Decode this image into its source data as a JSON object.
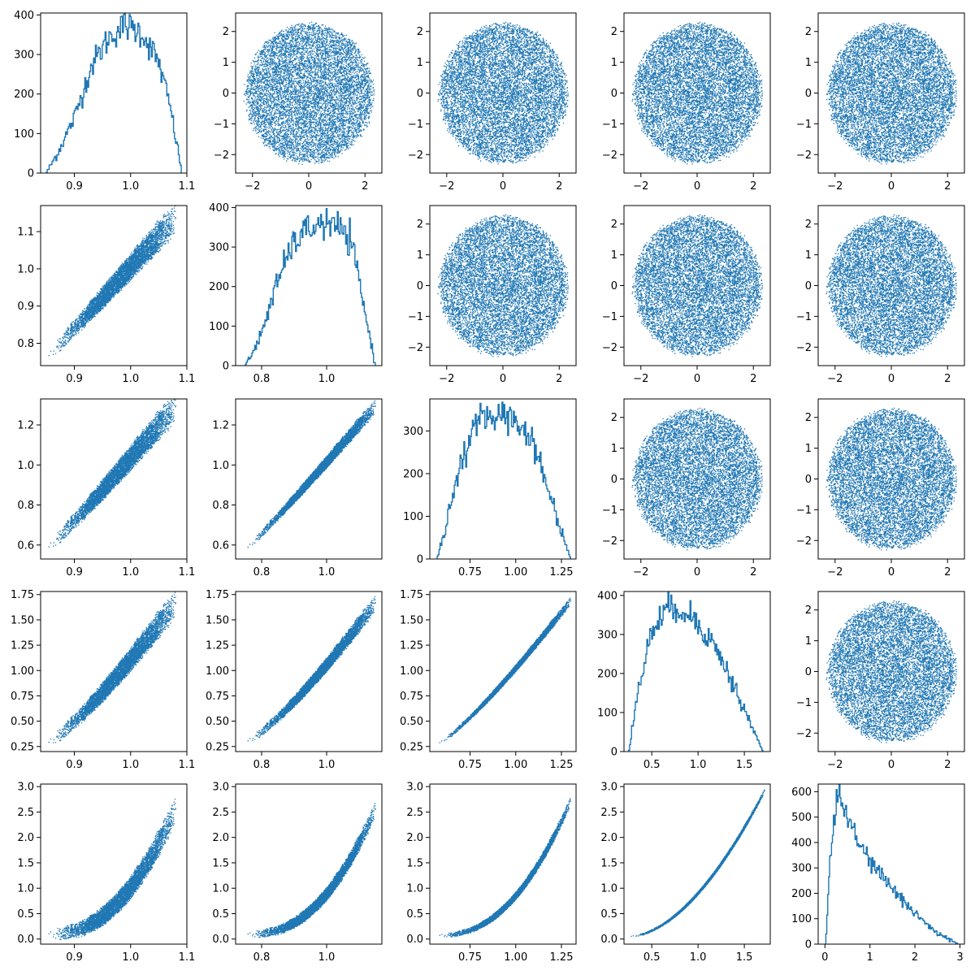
{
  "figure": {
    "rows": 5,
    "cols": 5,
    "color": "#1f77b4",
    "background": "#ffffff"
  },
  "chart_data": [
    {
      "panel": "0-0",
      "type": "histogram",
      "xlim": [
        0.84,
        1.1
      ],
      "ylim": [
        0,
        405
      ],
      "xticks": [
        0.9,
        1.0,
        1.1
      ],
      "yticks": [
        0,
        100,
        200,
        300,
        400
      ],
      "xtick_labels": [
        "0.9",
        "1.0",
        "1.1"
      ],
      "ytick_labels": [
        "0",
        "100",
        "200",
        "300",
        "400"
      ],
      "curve": [
        [
          0.85,
          0
        ],
        [
          0.87,
          50
        ],
        [
          0.9,
          140
        ],
        [
          0.93,
          270
        ],
        [
          0.96,
          340
        ],
        [
          0.99,
          375
        ],
        [
          1.02,
          355
        ],
        [
          1.05,
          280
        ],
        [
          1.07,
          170
        ],
        [
          1.09,
          10
        ]
      ]
    },
    {
      "panel": "0-1",
      "type": "scatter",
      "xlim": [
        -2.6,
        2.6
      ],
      "ylim": [
        -2.6,
        2.6
      ],
      "xticks": [
        -2,
        0,
        2
      ],
      "yticks": [
        -2,
        -1,
        0,
        1,
        2
      ],
      "xtick_labels": [
        "−2",
        "0",
        "2"
      ],
      "ytick_labels": [
        "−2",
        "−1",
        "0",
        "1",
        "2"
      ],
      "shape": "disk",
      "radius": 2.3
    },
    {
      "panel": "0-2",
      "type": "scatter",
      "xlim": [
        -2.6,
        2.6
      ],
      "ylim": [
        -2.6,
        2.6
      ],
      "xticks": [
        -2,
        0,
        2
      ],
      "yticks": [
        -2,
        -1,
        0,
        1,
        2
      ],
      "xtick_labels": [
        "−2",
        "0",
        "2"
      ],
      "ytick_labels": [
        "−2",
        "−1",
        "0",
        "1",
        "2"
      ],
      "shape": "disk",
      "radius": 2.3
    },
    {
      "panel": "0-3",
      "type": "scatter",
      "xlim": [
        -2.6,
        2.6
      ],
      "ylim": [
        -2.6,
        2.6
      ],
      "xticks": [
        -2,
        0,
        2
      ],
      "yticks": [
        -2,
        -1,
        0,
        1,
        2
      ],
      "xtick_labels": [
        "−2",
        "0",
        "2"
      ],
      "ytick_labels": [
        "−2",
        "−1",
        "0",
        "1",
        "2"
      ],
      "shape": "disk",
      "radius": 2.3
    },
    {
      "panel": "0-4",
      "type": "scatter",
      "xlim": [
        -2.6,
        2.6
      ],
      "ylim": [
        -2.6,
        2.6
      ],
      "xticks": [
        -2,
        0,
        2
      ],
      "yticks": [
        -2,
        -1,
        0,
        1,
        2
      ],
      "xtick_labels": [
        "−2",
        "0",
        "2"
      ],
      "ytick_labels": [
        "−2",
        "−1",
        "0",
        "1",
        "2"
      ],
      "shape": "disk",
      "radius": 2.3
    },
    {
      "panel": "1-0",
      "type": "scatter",
      "xlim": [
        0.84,
        1.1
      ],
      "ylim": [
        0.74,
        1.17
      ],
      "xticks": [
        0.9,
        1.0,
        1.1
      ],
      "yticks": [
        0.8,
        0.9,
        1.0,
        1.1
      ],
      "xtick_labels": [
        "0.9",
        "1.0",
        "1.1"
      ],
      "ytick_labels": [
        "0.8",
        "0.9",
        "1.0",
        "1.1"
      ],
      "shape": "band",
      "band": {
        "x": [
          0.85,
          1.08
        ],
        "y0": 0.76,
        "y1": 1.14,
        "power": 1,
        "halfwidth": 0.04
      }
    },
    {
      "panel": "1-1",
      "type": "histogram",
      "xlim": [
        0.72,
        1.17
      ],
      "ylim": [
        0,
        405
      ],
      "xticks": [
        0.8,
        1.0
      ],
      "yticks": [
        0,
        100,
        200,
        300,
        400
      ],
      "xtick_labels": [
        "0.8",
        "1.0"
      ],
      "ytick_labels": [
        "0",
        "100",
        "200",
        "300",
        "400"
      ],
      "curve": [
        [
          0.75,
          0
        ],
        [
          0.79,
          60
        ],
        [
          0.84,
          190
        ],
        [
          0.89,
          300
        ],
        [
          0.94,
          345
        ],
        [
          0.99,
          360
        ],
        [
          1.04,
          350
        ],
        [
          1.08,
          300
        ],
        [
          1.11,
          170
        ],
        [
          1.15,
          0
        ]
      ]
    },
    {
      "panel": "1-2",
      "type": "scatter",
      "xlim": [
        -2.6,
        2.6
      ],
      "ylim": [
        -2.6,
        2.6
      ],
      "xticks": [
        -2,
        0,
        2
      ],
      "yticks": [
        -2,
        -1,
        0,
        1,
        2
      ],
      "xtick_labels": [
        "−2",
        "0",
        "2"
      ],
      "ytick_labels": [
        "−2",
        "−1",
        "0",
        "1",
        "2"
      ],
      "shape": "disk",
      "radius": 2.3
    },
    {
      "panel": "1-3",
      "type": "scatter",
      "xlim": [
        -2.6,
        2.6
      ],
      "ylim": [
        -2.6,
        2.6
      ],
      "xticks": [
        -2,
        0,
        2
      ],
      "yticks": [
        -2,
        -1,
        0,
        1,
        2
      ],
      "xtick_labels": [
        "−2",
        "0",
        "2"
      ],
      "ytick_labels": [
        "−2",
        "−1",
        "0",
        "1",
        "2"
      ],
      "shape": "disk",
      "radius": 2.3
    },
    {
      "panel": "1-4",
      "type": "scatter",
      "xlim": [
        -2.6,
        2.6
      ],
      "ylim": [
        -2.6,
        2.6
      ],
      "xticks": [
        -2,
        0,
        2
      ],
      "yticks": [
        -2,
        -1,
        0,
        1,
        2
      ],
      "xtick_labels": [
        "−2",
        "0",
        "2"
      ],
      "ytick_labels": [
        "−2",
        "−1",
        "0",
        "1",
        "2"
      ],
      "shape": "disk",
      "radius": 2.3
    },
    {
      "panel": "2-0",
      "type": "scatter",
      "xlim": [
        0.84,
        1.1
      ],
      "ylim": [
        0.53,
        1.33
      ],
      "xticks": [
        0.9,
        1.0,
        1.1
      ],
      "yticks": [
        0.6,
        0.8,
        1.0,
        1.2
      ],
      "xtick_labels": [
        "0.9",
        "1.0",
        "1.1"
      ],
      "ytick_labels": [
        "0.6",
        "0.8",
        "1.0",
        "1.2"
      ],
      "shape": "band",
      "band": {
        "x": [
          0.85,
          1.08
        ],
        "y0": 0.58,
        "y1": 1.3,
        "power": 1.05,
        "halfwidth": 0.07
      }
    },
    {
      "panel": "2-1",
      "type": "scatter",
      "xlim": [
        0.72,
        1.17
      ],
      "ylim": [
        0.53,
        1.33
      ],
      "xticks": [
        0.8,
        1.0
      ],
      "yticks": [
        0.6,
        0.8,
        1.0,
        1.2
      ],
      "xtick_labels": [
        "0.8",
        "1.0"
      ],
      "ytick_labels": [
        "0.6",
        "0.8",
        "1.0",
        "1.2"
      ],
      "shape": "band",
      "band": {
        "x": [
          0.75,
          1.15
        ],
        "y0": 0.58,
        "y1": 1.3,
        "power": 1.05,
        "halfwidth": 0.035
      }
    },
    {
      "panel": "2-2",
      "type": "histogram",
      "xlim": [
        0.53,
        1.33
      ],
      "ylim": [
        0,
        375
      ],
      "xticks": [
        0.75,
        1.0,
        1.25
      ],
      "yticks": [
        0,
        100,
        200,
        300
      ],
      "xtick_labels": [
        "0.75",
        "1.00",
        "1.25"
      ],
      "ytick_labels": [
        "0",
        "100",
        "200",
        "300"
      ],
      "curve": [
        [
          0.57,
          0
        ],
        [
          0.62,
          80
        ],
        [
          0.7,
          230
        ],
        [
          0.78,
          310
        ],
        [
          0.86,
          340
        ],
        [
          0.94,
          335
        ],
        [
          1.02,
          320
        ],
        [
          1.1,
          270
        ],
        [
          1.18,
          160
        ],
        [
          1.3,
          0
        ]
      ]
    },
    {
      "panel": "2-3",
      "type": "scatter",
      "xlim": [
        -2.6,
        2.6
      ],
      "ylim": [
        -2.6,
        2.6
      ],
      "xticks": [
        -2,
        0,
        2
      ],
      "yticks": [
        -2,
        -1,
        0,
        1,
        2
      ],
      "xtick_labels": [
        "−2",
        "0",
        "2"
      ],
      "ytick_labels": [
        "−2",
        "−1",
        "0",
        "1",
        "2"
      ],
      "shape": "disk",
      "radius": 2.3
    },
    {
      "panel": "2-4",
      "type": "scatter",
      "xlim": [
        -2.6,
        2.6
      ],
      "ylim": [
        -2.6,
        2.6
      ],
      "xticks": [
        -2,
        0,
        2
      ],
      "yticks": [
        -2,
        -1,
        0,
        1,
        2
      ],
      "xtick_labels": [
        "−2",
        "0",
        "2"
      ],
      "ytick_labels": [
        "−2",
        "−1",
        "0",
        "1",
        "2"
      ],
      "shape": "disk",
      "radius": 2.3
    },
    {
      "panel": "3-0",
      "type": "scatter",
      "xlim": [
        0.84,
        1.1
      ],
      "ylim": [
        0.2,
        1.78
      ],
      "xticks": [
        0.9,
        1.0,
        1.1
      ],
      "yticks": [
        0.25,
        0.5,
        0.75,
        1.0,
        1.25,
        1.5,
        1.75
      ],
      "xtick_labels": [
        "0.9",
        "1.0",
        "1.1"
      ],
      "ytick_labels": [
        "0.25",
        "0.50",
        "0.75",
        "1.00",
        "1.25",
        "1.50",
        "1.75"
      ],
      "shape": "band",
      "band": {
        "x": [
          0.85,
          1.08
        ],
        "y0": 0.28,
        "y1": 1.68,
        "power": 1.2,
        "halfwidth": 0.13
      }
    },
    {
      "panel": "3-1",
      "type": "scatter",
      "xlim": [
        0.72,
        1.17
      ],
      "ylim": [
        0.2,
        1.78
      ],
      "xticks": [
        0.8,
        1.0
      ],
      "yticks": [
        0.25,
        0.5,
        0.75,
        1.0,
        1.25,
        1.5,
        1.75
      ],
      "xtick_labels": [
        "0.8",
        "1.0"
      ],
      "ytick_labels": [
        "0.25",
        "0.50",
        "0.75",
        "1.00",
        "1.25",
        "1.50",
        "1.75"
      ],
      "shape": "band",
      "band": {
        "x": [
          0.75,
          1.15
        ],
        "y0": 0.3,
        "y1": 1.68,
        "power": 1.25,
        "halfwidth": 0.08
      }
    },
    {
      "panel": "3-2",
      "type": "scatter",
      "xlim": [
        0.53,
        1.33
      ],
      "ylim": [
        0.2,
        1.78
      ],
      "xticks": [
        0.75,
        1.0,
        1.25
      ],
      "yticks": [
        0.25,
        0.5,
        0.75,
        1.0,
        1.25,
        1.5,
        1.75
      ],
      "xtick_labels": [
        "0.75",
        "1.00",
        "1.25"
      ],
      "ytick_labels": [
        "0.25",
        "0.50",
        "0.75",
        "1.00",
        "1.25",
        "1.50",
        "1.75"
      ],
      "shape": "band",
      "band": {
        "x": [
          0.57,
          1.3
        ],
        "y0": 0.28,
        "y1": 1.7,
        "power": 1.2,
        "halfwidth": 0.04
      }
    },
    {
      "panel": "3-3",
      "type": "histogram",
      "xlim": [
        0.2,
        1.78
      ],
      "ylim": [
        0,
        410
      ],
      "xticks": [
        0.5,
        1.0,
        1.5
      ],
      "yticks": [
        0,
        100,
        200,
        300,
        400
      ],
      "xtick_labels": [
        "0.5",
        "1.0",
        "1.5"
      ],
      "ytick_labels": [
        "0",
        "100",
        "200",
        "300",
        "400"
      ],
      "curve": [
        [
          0.25,
          0
        ],
        [
          0.35,
          150
        ],
        [
          0.5,
          310
        ],
        [
          0.65,
          360
        ],
        [
          0.8,
          370
        ],
        [
          0.95,
          340
        ],
        [
          1.1,
          300
        ],
        [
          1.25,
          240
        ],
        [
          1.4,
          160
        ],
        [
          1.55,
          80
        ],
        [
          1.7,
          0
        ]
      ]
    },
    {
      "panel": "3-4",
      "type": "scatter",
      "xlim": [
        -2.6,
        2.6
      ],
      "ylim": [
        -2.6,
        2.6
      ],
      "xticks": [
        -2,
        0,
        2
      ],
      "yticks": [
        -2,
        -1,
        0,
        1,
        2
      ],
      "xtick_labels": [
        "−2",
        "0",
        "2"
      ],
      "ytick_labels": [
        "−2",
        "−1",
        "0",
        "1",
        "2"
      ],
      "shape": "disk",
      "radius": 2.3
    },
    {
      "panel": "4-0",
      "type": "scatter",
      "xlim": [
        0.84,
        1.1
      ],
      "ylim": [
        -0.1,
        3.05
      ],
      "xticks": [
        0.9,
        1.0,
        1.1
      ],
      "yticks": [
        0,
        0.5,
        1.0,
        1.5,
        2.0,
        2.5,
        3.0
      ],
      "xtick_labels": [
        "0.9",
        "1.0",
        "1.1"
      ],
      "ytick_labels": [
        "0.0",
        "0.5",
        "1.0",
        "1.5",
        "2.0",
        "2.5",
        "3.0"
      ],
      "shape": "band",
      "band": {
        "x": [
          0.85,
          1.08
        ],
        "y0": 0.1,
        "y1": 2.6,
        "power": 2.3,
        "halfwidth": 0.25
      }
    },
    {
      "panel": "4-1",
      "type": "scatter",
      "xlim": [
        0.72,
        1.17
      ],
      "ylim": [
        -0.1,
        3.05
      ],
      "xticks": [
        0.8,
        1.0
      ],
      "yticks": [
        0,
        0.5,
        1.0,
        1.5,
        2.0,
        2.5,
        3.0
      ],
      "xtick_labels": [
        "0.8",
        "1.0"
      ],
      "ytick_labels": [
        "0.0",
        "0.5",
        "1.0",
        "1.5",
        "2.0",
        "2.5",
        "3.0"
      ],
      "shape": "band",
      "band": {
        "x": [
          0.75,
          1.15
        ],
        "y0": 0.1,
        "y1": 2.6,
        "power": 2.4,
        "halfwidth": 0.15
      }
    },
    {
      "panel": "4-2",
      "type": "scatter",
      "xlim": [
        0.53,
        1.33
      ],
      "ylim": [
        -0.1,
        3.05
      ],
      "xticks": [
        0.75,
        1.0,
        1.25
      ],
      "yticks": [
        0,
        0.5,
        1.0,
        1.5,
        2.0,
        2.5,
        3.0
      ],
      "xtick_labels": [
        "0.75",
        "1.00",
        "1.25"
      ],
      "ytick_labels": [
        "0.0",
        "0.5",
        "1.0",
        "1.5",
        "2.0",
        "2.5",
        "3.0"
      ],
      "shape": "band",
      "band": {
        "x": [
          0.57,
          1.3
        ],
        "y0": 0.08,
        "y1": 2.75,
        "power": 2.3,
        "halfwidth": 0.09
      }
    },
    {
      "panel": "4-3",
      "type": "scatter",
      "xlim": [
        0.2,
        1.78
      ],
      "ylim": [
        -0.1,
        3.05
      ],
      "xticks": [
        0.5,
        1.0,
        1.5
      ],
      "yticks": [
        0,
        0.5,
        1.0,
        1.5,
        2.0,
        2.5,
        3.0
      ],
      "xtick_labels": [
        "0.5",
        "1.0",
        "1.5"
      ],
      "ytick_labels": [
        "0.0",
        "0.5",
        "1.0",
        "1.5",
        "2.0",
        "2.5",
        "3.0"
      ],
      "shape": "band",
      "band": {
        "x": [
          0.25,
          1.72
        ],
        "y0": 0.06,
        "y1": 2.95,
        "power": 1.8,
        "halfwidth": 0.04
      }
    },
    {
      "panel": "4-4",
      "type": "histogram",
      "xlim": [
        -0.15,
        3.1
      ],
      "ylim": [
        0,
        630
      ],
      "xticks": [
        0,
        1,
        2,
        3
      ],
      "yticks": [
        0,
        100,
        200,
        300,
        400,
        500,
        600
      ],
      "xtick_labels": [
        "0",
        "1",
        "2",
        "3"
      ],
      "ytick_labels": [
        "0",
        "100",
        "200",
        "300",
        "400",
        "500",
        "600"
      ],
      "curve": [
        [
          0.02,
          0
        ],
        [
          0.1,
          300
        ],
        [
          0.2,
          500
        ],
        [
          0.3,
          580
        ],
        [
          0.45,
          540
        ],
        [
          0.6,
          450
        ],
        [
          0.8,
          380
        ],
        [
          1.0,
          330
        ],
        [
          1.3,
          260
        ],
        [
          1.6,
          200
        ],
        [
          1.9,
          140
        ],
        [
          2.2,
          90
        ],
        [
          2.5,
          40
        ],
        [
          2.8,
          15
        ],
        [
          2.95,
          0
        ]
      ]
    }
  ]
}
